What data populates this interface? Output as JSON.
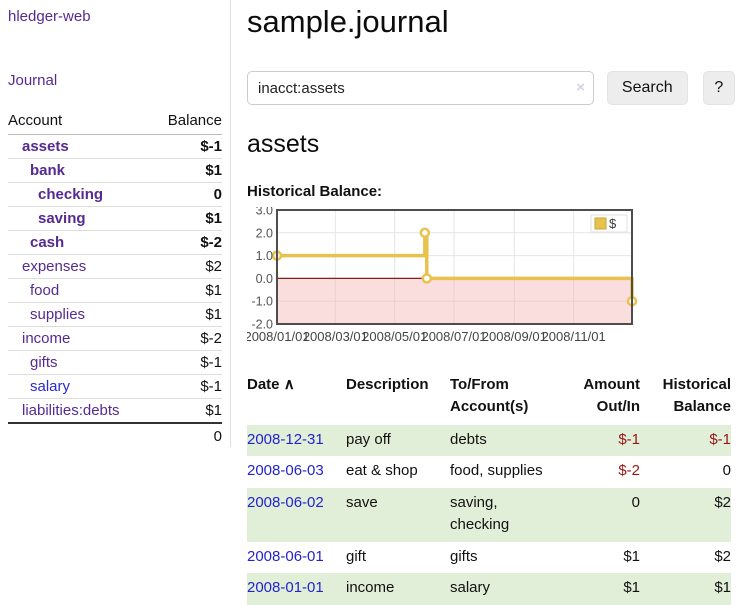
{
  "app": {
    "brand": "hledger-web",
    "nav_journal": "Journal"
  },
  "sidebar": {
    "header": {
      "account": "Account",
      "balance": "Balance"
    },
    "accounts": [
      {
        "name": "assets",
        "level": 1,
        "bold": true,
        "blue": false,
        "balance": "$-1",
        "balance_style": "neg-strong"
      },
      {
        "name": "bank",
        "level": 2,
        "bold": true,
        "blue": false,
        "balance": "$1",
        "balance_style": "bold"
      },
      {
        "name": "checking",
        "level": 3,
        "bold": true,
        "blue": false,
        "balance": "0",
        "balance_style": "bold"
      },
      {
        "name": "saving",
        "level": 3,
        "bold": true,
        "blue": false,
        "balance": "$1",
        "balance_style": "bold"
      },
      {
        "name": "cash",
        "level": 2,
        "bold": true,
        "blue": false,
        "balance": "$-2",
        "balance_style": "neg-strong"
      },
      {
        "name": "expenses",
        "level": 1,
        "bold": false,
        "blue": false,
        "balance": "$2",
        "balance_style": "plain"
      },
      {
        "name": "food",
        "level": 2,
        "bold": false,
        "blue": false,
        "balance": "$1",
        "balance_style": "plain"
      },
      {
        "name": "supplies",
        "level": 2,
        "bold": false,
        "blue": false,
        "balance": "$1",
        "balance_style": "plain"
      },
      {
        "name": "income",
        "level": 1,
        "bold": false,
        "blue": false,
        "balance": "$-2",
        "balance_style": "neg-soft"
      },
      {
        "name": "gifts",
        "level": 2,
        "bold": false,
        "blue": false,
        "balance": "$-1",
        "balance_style": "neg-soft"
      },
      {
        "name": "salary",
        "level": 2,
        "bold": false,
        "blue": true,
        "balance": "$-1",
        "balance_style": "neg-soft"
      },
      {
        "name": "liabilities:debts",
        "level": 1,
        "bold": false,
        "blue": false,
        "balance": "$1",
        "balance_style": "plain"
      }
    ],
    "total": "0"
  },
  "header": {
    "title": "sample.journal"
  },
  "search": {
    "value": "inacct:assets",
    "clear_icon": "×",
    "button_label": "Search",
    "help_label": "?"
  },
  "account_page": {
    "heading": "assets",
    "chart_label": "Historical Balance:"
  },
  "chart_data": {
    "type": "line",
    "title": "Historical Balance",
    "step": true,
    "series": [
      {
        "name": "$",
        "color": "#e8c24d",
        "points": [
          [
            "2008-01-01",
            1.0
          ],
          [
            "2008-06-01",
            2.0
          ],
          [
            "2008-06-03",
            0.0
          ],
          [
            "2008-12-31",
            -1.0
          ]
        ]
      }
    ],
    "x_range": [
      "2008-01-01",
      "2008-12-31"
    ],
    "x_ticks": [
      "2008/01/01",
      "2008/03/01",
      "2008/05/01",
      "2008/07/01",
      "2008/09/01",
      "2008/11/01"
    ],
    "y_ticks": [
      "3.0",
      "2.0",
      "1.0",
      "0.0",
      "-1.0",
      "-2.0"
    ],
    "ylim": [
      -2.0,
      3.0
    ],
    "grid": true,
    "legend": {
      "label": "$",
      "position": "top-right"
    },
    "negative_region_fill": "#f3b6b6",
    "zero_line_color": "#8b1d1d"
  },
  "register": {
    "columns": [
      "Date",
      "Description",
      "To/From Account(s)",
      "Amount Out/In",
      "Historical Balance"
    ],
    "sort_icon": "∧",
    "rows": [
      {
        "date": "2008-12-31",
        "description": "pay off",
        "accounts": "debts",
        "amount": "$-1",
        "amount_neg": true,
        "balance": "$-1",
        "balance_neg": true,
        "green": true
      },
      {
        "date": "2008-06-03",
        "description": "eat & shop",
        "accounts": "food, supplies",
        "amount": "$-2",
        "amount_neg": true,
        "balance": "0",
        "balance_neg": false,
        "green": false
      },
      {
        "date": "2008-06-02",
        "description": "save",
        "accounts": "saving, checking",
        "amount": "0",
        "amount_neg": false,
        "balance": "$2",
        "balance_neg": false,
        "green": true
      },
      {
        "date": "2008-06-01",
        "description": "gift",
        "accounts": "gifts",
        "amount": "$1",
        "amount_neg": false,
        "balance": "$2",
        "balance_neg": false,
        "green": false
      },
      {
        "date": "2008-01-01",
        "description": "income",
        "accounts": "salary",
        "amount": "$1",
        "amount_neg": false,
        "balance": "$1",
        "balance_neg": false,
        "green": true
      }
    ]
  }
}
